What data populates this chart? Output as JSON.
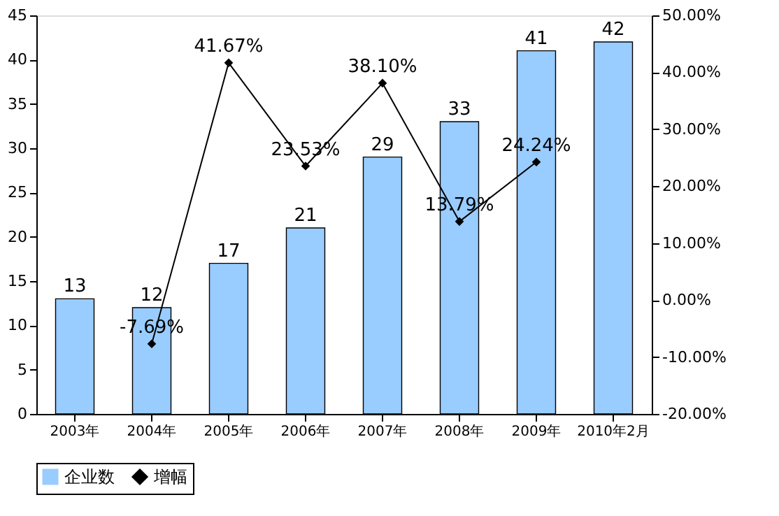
{
  "chart_data": {
    "type": "bar",
    "categories": [
      "2003年",
      "2004年",
      "2005年",
      "2006年",
      "2007年",
      "2008年",
      "2009年",
      "2010年2月"
    ],
    "series": [
      {
        "name": "企业数",
        "color": "#99ccff",
        "values": [
          13,
          12,
          17,
          21,
          29,
          33,
          41,
          42
        ],
        "value_labels": [
          "13",
          "12",
          "17",
          "21",
          "29",
          "33",
          "41",
          "42"
        ]
      },
      {
        "name": "增幅",
        "type": "line",
        "axis": "y2",
        "color": "#000000",
        "marker": "diamond",
        "values": [
          null,
          -7.69,
          41.67,
          23.53,
          38.1,
          13.79,
          24.24,
          null
        ],
        "value_labels": [
          null,
          "-7.69%",
          "41.67%",
          "23.53%",
          "38.10%",
          "13.79%",
          "24.24%",
          null
        ]
      }
    ],
    "ylim": [
      0,
      45
    ],
    "yticks": [
      0,
      5,
      10,
      15,
      20,
      25,
      30,
      35,
      40,
      45
    ],
    "y2lim": [
      -20,
      50
    ],
    "y2ticks": [
      {
        "value": -20,
        "label": "-20.00%"
      },
      {
        "value": -10,
        "label": "-10.00%"
      },
      {
        "value": 0,
        "label": "0.00%"
      },
      {
        "value": 10,
        "label": "10.00%"
      },
      {
        "value": 20,
        "label": "20.00%"
      },
      {
        "value": 30,
        "label": "30.00%"
      },
      {
        "value": 40,
        "label": "40.00%"
      },
      {
        "value": 50,
        "label": "50.00%"
      }
    ],
    "grid": false,
    "legend": "bottom"
  }
}
